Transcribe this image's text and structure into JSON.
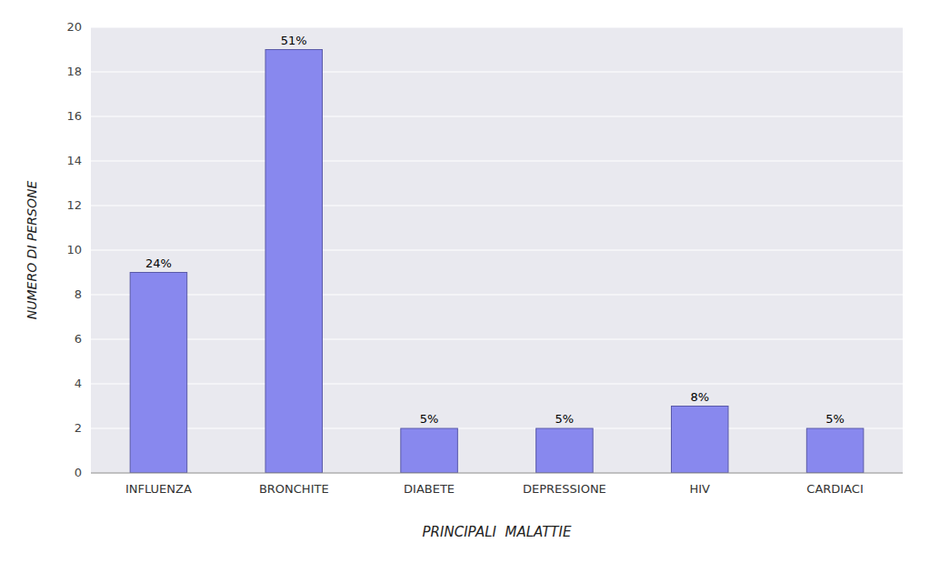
{
  "chart_data": {
    "type": "bar",
    "categories": [
      "INFLUENZA",
      "BRONCHITE",
      "DIABETE",
      "DEPRESSIONE",
      "HIV",
      "CARDIACI"
    ],
    "values": [
      9,
      19,
      2,
      2,
      3,
      2
    ],
    "value_labels": [
      "24%",
      "51%",
      "5%",
      "5%",
      "8%",
      "5%"
    ],
    "data_labels": true,
    "color": "#8888ee",
    "xlabel": "PRINCIPALI  MALATTIE",
    "ylabel": "NUMERO DI PERSONE",
    "ylim": [
      0,
      20
    ],
    "yticks": [
      0,
      2,
      4,
      6,
      8,
      10,
      12,
      14,
      16,
      18,
      20
    ],
    "grid": true
  }
}
